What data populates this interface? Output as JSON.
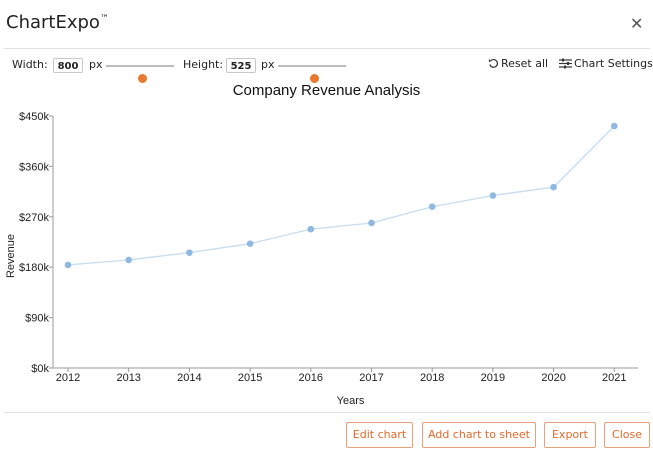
{
  "app": {
    "title": "ChartExpo",
    "trademark": "™"
  },
  "toolbar": {
    "width_label": "Width:",
    "width_value": "800",
    "width_unit": "px",
    "width_slider": 0.5,
    "height_label": "Height:",
    "height_value": "525",
    "height_unit": "px",
    "height_slider": 0.5,
    "reset_label": "Reset all",
    "settings_label": "Chart Settings"
  },
  "colors": {
    "accent": "#e8792f",
    "line": "#c6dcf0",
    "point": "#8fb8e3",
    "button_text": "#e26a2c"
  },
  "chart_data": {
    "type": "line",
    "title": "Company Revenue Analysis",
    "xlabel": "Years",
    "ylabel": "Revenue",
    "ylim": [
      0,
      450000
    ],
    "yticks": [
      0,
      90000,
      180000,
      270000,
      360000,
      450000
    ],
    "ytick_labels": [
      "$0k",
      "$90k",
      "$180k",
      "$270k",
      "$360k",
      "$450k"
    ],
    "x": [
      "2012",
      "2013",
      "2014",
      "2015",
      "2016",
      "2017",
      "2018",
      "2019",
      "2020",
      "2021"
    ],
    "series": [
      {
        "values": [
          184000,
          193000,
          206000,
          222000,
          248000,
          259000,
          288000,
          308000,
          323000,
          432000
        ]
      }
    ],
    "grid": false
  },
  "footer": {
    "edit_label": "Edit chart",
    "add_label": "Add chart to sheet",
    "export_label": "Export",
    "close_label": "Close"
  }
}
